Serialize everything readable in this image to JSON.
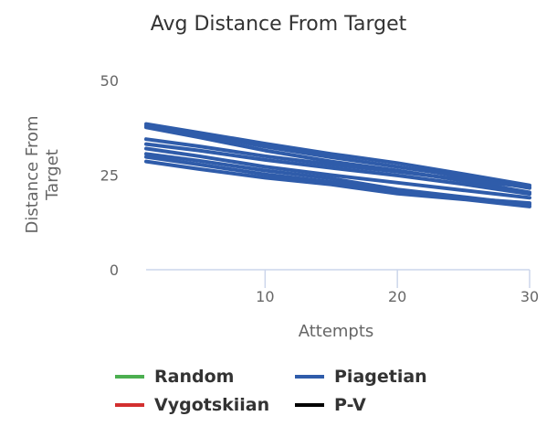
{
  "chart_data": {
    "type": "line",
    "title": "Avg Distance From Target",
    "xlabel": "Attempts",
    "ylabel": "Distance From Target",
    "ylabel_lines": [
      "Distance From",
      "Target"
    ],
    "xlim": [
      1,
      30
    ],
    "ylim": [
      0,
      50
    ],
    "x_ticks": [
      10,
      20,
      30
    ],
    "y_ticks": [
      0,
      25,
      50
    ],
    "grid": false,
    "legend_position": "bottom",
    "legend": [
      {
        "name": "Random",
        "color": "#4CAF50"
      },
      {
        "name": "Piagetian",
        "color": "#2F5CAA"
      },
      {
        "name": "Vygotskiian",
        "color": "#D32F2F"
      },
      {
        "name": "P-V",
        "color": "#000000"
      }
    ],
    "series_color": "#2F5CAA",
    "x": [
      1,
      5,
      10,
      15,
      20,
      25,
      30
    ],
    "series": [
      {
        "values": [
          38.5,
          36.2,
          33.3,
          30.6,
          28.2,
          25.3,
          22.3
        ]
      },
      {
        "values": [
          38.0,
          35.8,
          32.5,
          29.7,
          27.2,
          24.6,
          21.6
        ]
      },
      {
        "values": [
          37.6,
          35.0,
          31.5,
          28.6,
          26.2,
          23.5,
          20.4
        ]
      },
      {
        "values": [
          34.5,
          32.6,
          30.0,
          27.8,
          25.9,
          23.8,
          21.8
        ]
      },
      {
        "values": [
          33.2,
          31.5,
          29.0,
          26.9,
          24.9,
          22.6,
          20.0
        ]
      },
      {
        "values": [
          32.0,
          30.0,
          27.2,
          25.0,
          23.0,
          21.0,
          19.0
        ]
      },
      {
        "values": [
          30.6,
          28.8,
          26.2,
          24.1,
          21.2,
          19.2,
          17.2
        ]
      },
      {
        "values": [
          29.8,
          27.8,
          25.2,
          23.2,
          20.6,
          18.9,
          17.6
        ]
      },
      {
        "values": [
          28.6,
          26.6,
          24.3,
          22.5,
          20.1,
          18.6,
          16.7
        ]
      }
    ]
  }
}
